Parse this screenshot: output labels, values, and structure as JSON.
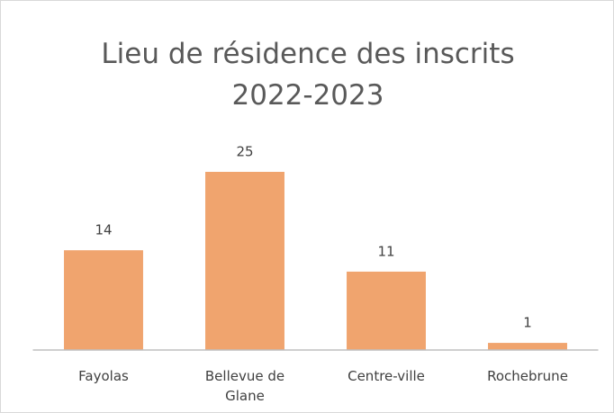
{
  "chart_data": {
    "type": "bar",
    "title": "Lieu de résidence des inscrits 2022-2023",
    "categories": [
      "Fayolas",
      "Bellevue de Glane",
      "Centre-ville",
      "Rochebrune"
    ],
    "values": [
      14,
      25,
      11,
      1
    ],
    "color": "#f0a46e",
    "ylim": [
      0,
      25
    ]
  }
}
